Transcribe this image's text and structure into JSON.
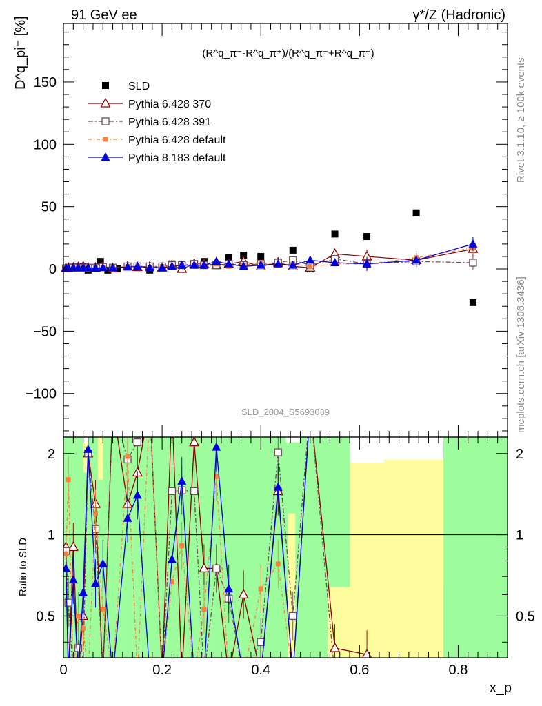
{
  "header": {
    "left_title": "91 GeV ee",
    "right_title": "γ*/Z (Hadronic)",
    "formula": "(R^q_π⁻-R^q_π⁺)/(R^q_π⁻+R^q_π⁺)",
    "watermark": "SLD_2004_S5693039",
    "side_rivet": "Rivet 3.1.10, ≥ 100k events",
    "side_mcplots": "mcplots.cern.ch [arXiv:1306.3436]"
  },
  "colors": {
    "sld": "#000000",
    "py370": "#8b0000",
    "py391": "#6b4a5a",
    "pydef": "#f4823c",
    "py8": "#0000dd",
    "band_inner": "#9dfd9d",
    "band_outer": "#fdfd9d"
  },
  "chart_data": [
    {
      "type": "scatter",
      "panel": "main",
      "ylabel": "D^q_pi⁻ [%]",
      "xlim": [
        0,
        0.9
      ],
      "ylim": [
        -135,
        197
      ],
      "yticks": [
        -100,
        -50,
        0,
        50,
        100,
        150
      ],
      "legend_position": "top-left",
      "series": [
        {
          "key": "sld",
          "name": "SLD",
          "x": [
            0.005,
            0.01,
            0.015,
            0.02,
            0.025,
            0.03,
            0.035,
            0.04,
            0.045,
            0.05,
            0.055,
            0.065,
            0.075,
            0.09,
            0.11,
            0.13,
            0.15,
            0.175,
            0.2,
            0.22,
            0.24,
            0.265,
            0.285,
            0.31,
            0.335,
            0.365,
            0.4,
            0.435,
            0.465,
            0.5,
            0.55,
            0.615,
            0.715,
            0.83
          ],
          "y": [
            0.5,
            1,
            0.5,
            1.5,
            1,
            1.5,
            1,
            2,
            1,
            -1,
            0.5,
            1,
            6,
            -1,
            0,
            2,
            1,
            -1,
            1,
            4,
            3,
            3,
            6,
            3,
            9,
            11,
            10,
            5,
            15,
            0,
            28,
            26,
            45,
            -27
          ]
        },
        {
          "key": "py370",
          "name": "Pythia 6.428 370",
          "x": [
            0.005,
            0.01,
            0.02,
            0.03,
            0.04,
            0.05,
            0.065,
            0.08,
            0.1,
            0.13,
            0.15,
            0.175,
            0.2,
            0.22,
            0.24,
            0.265,
            0.285,
            0.31,
            0.335,
            0.365,
            0.4,
            0.435,
            0.465,
            0.5,
            0.55,
            0.615,
            0.715,
            0.83
          ],
          "y": [
            0.5,
            1,
            1,
            1.5,
            2,
            1,
            1,
            2,
            0.5,
            2,
            1.5,
            2,
            1,
            3,
            0,
            4,
            4,
            3,
            4,
            6,
            2,
            5,
            2,
            1,
            12,
            10,
            7,
            16
          ]
        },
        {
          "key": "py391",
          "name": "Pythia 6.428 391",
          "x": [
            0.005,
            0.01,
            0.02,
            0.03,
            0.04,
            0.05,
            0.065,
            0.08,
            0.1,
            0.13,
            0.15,
            0.175,
            0.2,
            0.22,
            0.24,
            0.265,
            0.285,
            0.31,
            0.335,
            0.365,
            0.4,
            0.435,
            0.465,
            0.5,
            0.55,
            0.615,
            0.715,
            0.83
          ],
          "y": [
            0.5,
            0.5,
            1,
            1,
            1,
            1,
            1,
            1.5,
            1,
            2,
            2,
            2,
            2,
            3,
            3,
            4,
            3,
            3,
            4,
            3,
            4,
            5,
            7,
            3,
            8,
            4,
            6,
            5
          ]
        },
        {
          "key": "pydef",
          "name": "Pythia 6.428 default",
          "x": [
            0.005,
            0.01,
            0.02,
            0.03,
            0.04,
            0.05,
            0.065,
            0.08,
            0.1,
            0.13,
            0.15,
            0.175,
            0.2,
            0.22,
            0.24,
            0.265,
            0.285,
            0.31,
            0.335,
            0.365,
            0.4,
            0.435,
            0.465,
            0.5,
            0.55,
            0.615,
            0.715,
            0.83
          ],
          "y": [
            0.5,
            0.5,
            0.5,
            1,
            1,
            1,
            1,
            1,
            1,
            2,
            2,
            1,
            2,
            2,
            3,
            3,
            3,
            4,
            2,
            3,
            5,
            3,
            4,
            2,
            4,
            4,
            9,
            17
          ]
        },
        {
          "key": "py8",
          "name": "Pythia 8.183 default",
          "x": [
            0.005,
            0.01,
            0.02,
            0.03,
            0.04,
            0.05,
            0.065,
            0.08,
            0.1,
            0.13,
            0.15,
            0.175,
            0.2,
            0.22,
            0.24,
            0.265,
            0.285,
            0.31,
            0.335,
            0.365,
            0.4,
            0.435,
            0.465,
            0.5,
            0.55,
            0.615,
            0.715,
            0.83
          ],
          "y": [
            0.5,
            0.5,
            1,
            1,
            1,
            1,
            0.5,
            1,
            1,
            1.5,
            2,
            1,
            1,
            2,
            3,
            3,
            3,
            6,
            4,
            2,
            3,
            4,
            3,
            7,
            5,
            4,
            7,
            20
          ]
        }
      ]
    },
    {
      "type": "line",
      "panel": "ratio",
      "ylabel": "Ratio to SLD",
      "xlabel": "x_p",
      "xlim": [
        0,
        0.9
      ],
      "ylim": [
        0.35,
        2.3
      ],
      "yticks": [
        0.5,
        1,
        2
      ],
      "xticks": [
        0,
        0.2,
        0.4,
        0.6,
        0.8
      ],
      "series": [
        {
          "key": "py370",
          "name": "Pythia 6.428 370",
          "x": [
            0.005,
            0.01,
            0.02,
            0.03,
            0.04,
            0.05,
            0.065,
            0.08,
            0.1,
            0.13,
            0.15,
            0.175,
            0.2,
            0.22,
            0.24,
            0.265,
            0.285,
            0.31,
            0.335,
            0.365,
            0.4,
            0.435,
            0.465,
            0.5,
            0.55,
            0.615
          ],
          "y": [
            0.9,
            0.3,
            0.9,
            0.3,
            0.5,
            2.0,
            1.3,
            0.3,
            3.0,
            1.3,
            1.7,
            3.0,
            0.2,
            3.0,
            0.3,
            2.2,
            0.75,
            0.75,
            0.2,
            0.6,
            0.2,
            1.45,
            0.3,
            3.0,
            0.38,
            0.36
          ]
        },
        {
          "key": "py391",
          "name": "Pythia 6.428 391",
          "x": [
            0.005,
            0.01,
            0.02,
            0.03,
            0.04,
            0.05,
            0.065,
            0.08,
            0.1,
            0.13,
            0.15,
            0.175,
            0.2,
            0.22,
            0.24,
            0.265,
            0.285,
            0.31,
            0.335,
            0.365,
            0.4,
            0.435,
            0.465,
            0.5,
            0.55
          ],
          "y": [
            0.87,
            0.56,
            0.3,
            0.38,
            0.35,
            2.0,
            1.05,
            0.3,
            3.0,
            1.9,
            2.2,
            3.0,
            0.2,
            1.45,
            1.46,
            1.45,
            0.3,
            0.75,
            0.58,
            0.3,
            0.4,
            2.02,
            0.5,
            3.0,
            0.3
          ]
        },
        {
          "key": "pydef",
          "name": "Pythia 6.428 default",
          "x": [
            0.005,
            0.01,
            0.02,
            0.03,
            0.04,
            0.05,
            0.065,
            0.08,
            0.1,
            0.13,
            0.15,
            0.175,
            0.2,
            0.22,
            0.24,
            0.265,
            0.285,
            0.31,
            0.335,
            0.365,
            0.4,
            0.435,
            0.465,
            0.5
          ],
          "y": [
            0.85,
            1.6,
            0.3,
            0.5,
            0.45,
            0.3,
            1.2,
            0.53,
            0.3,
            1.95,
            0.3,
            3.0,
            0.3,
            0.67,
            0.91,
            0.3,
            0.53,
            1.64,
            0.3,
            0.3,
            0.63,
            0.78,
            0.3,
            3.0
          ]
        },
        {
          "key": "py8",
          "name": "Pythia 8.183 default",
          "x": [
            0.005,
            0.01,
            0.02,
            0.03,
            0.04,
            0.05,
            0.065,
            0.08,
            0.1,
            0.13,
            0.15,
            0.175,
            0.2,
            0.22,
            0.24,
            0.265,
            0.285,
            0.31,
            0.335,
            0.365,
            0.4,
            0.435,
            0.465,
            0.5
          ],
          "y": [
            0.75,
            0.3,
            0.68,
            0.3,
            0.61,
            2.07,
            0.66,
            0.78,
            0.3,
            1.15,
            1.4,
            0.3,
            0.2,
            0.81,
            1.58,
            0.3,
            0.3,
            2.11,
            0.63,
            0.3,
            0.3,
            1.5,
            0.3,
            3.0
          ]
        }
      ]
    }
  ]
}
